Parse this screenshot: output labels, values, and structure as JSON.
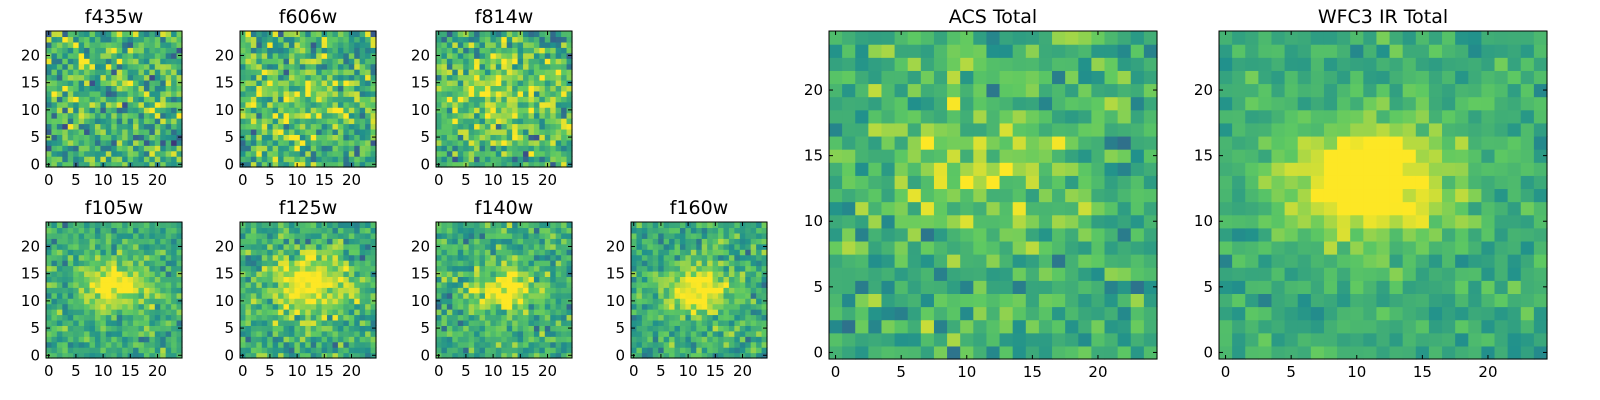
{
  "chart_data": [
    {
      "type": "heatmap",
      "title": "f435w",
      "grid": 25,
      "xlim": [
        0,
        24
      ],
      "ylim": [
        0,
        24
      ],
      "xticks": [
        0,
        5,
        10,
        15,
        20
      ],
      "yticks": [
        0,
        5,
        10,
        15,
        20
      ],
      "signal": {
        "cx": 12,
        "cy": 13,
        "sx": 14,
        "sy": 14,
        "amp": 0.05
      },
      "noise": 0.34,
      "seed": 11
    },
    {
      "type": "heatmap",
      "title": "f606w",
      "grid": 25,
      "xlim": [
        0,
        24
      ],
      "ylim": [
        0,
        24
      ],
      "xticks": [
        0,
        5,
        10,
        15,
        20
      ],
      "yticks": [
        0,
        5,
        10,
        15,
        20
      ],
      "signal": {
        "cx": 11,
        "cy": 13,
        "sx": 9,
        "sy": 7,
        "amp": 0.15
      },
      "noise": 0.34,
      "seed": 23
    },
    {
      "type": "heatmap",
      "title": "f814w",
      "grid": 25,
      "xlim": [
        0,
        24
      ],
      "ylim": [
        0,
        24
      ],
      "xticks": [
        0,
        5,
        10,
        15,
        20
      ],
      "yticks": [
        0,
        5,
        10,
        15,
        20
      ],
      "signal": {
        "cx": 11,
        "cy": 13,
        "sx": 8,
        "sy": 6,
        "amp": 0.22
      },
      "noise": 0.32,
      "seed": 37
    },
    {
      "type": "heatmap",
      "title": "f105w",
      "grid": 25,
      "xlim": [
        0,
        24
      ],
      "ylim": [
        0,
        24
      ],
      "xticks": [
        0,
        5,
        10,
        15,
        20
      ],
      "yticks": [
        0,
        5,
        10,
        15,
        20
      ],
      "signal": {
        "cx": 12,
        "cy": 13,
        "sx": 4,
        "sy": 3,
        "amp": 0.45
      },
      "noise": 0.22,
      "seed": 41
    },
    {
      "type": "heatmap",
      "title": "f125w",
      "grid": 25,
      "xlim": [
        0,
        24
      ],
      "ylim": [
        0,
        24
      ],
      "xticks": [
        0,
        5,
        10,
        15,
        20
      ],
      "yticks": [
        0,
        5,
        10,
        15,
        20
      ],
      "signal": {
        "cx": 12,
        "cy": 13,
        "sx": 5,
        "sy": 4,
        "amp": 0.42
      },
      "noise": 0.24,
      "seed": 53
    },
    {
      "type": "heatmap",
      "title": "f140w",
      "grid": 25,
      "xlim": [
        0,
        24
      ],
      "ylim": [
        0,
        24
      ],
      "xticks": [
        0,
        5,
        10,
        15,
        20
      ],
      "yticks": [
        0,
        5,
        10,
        15,
        20
      ],
      "signal": {
        "cx": 12,
        "cy": 12,
        "sx": 4,
        "sy": 3,
        "amp": 0.42
      },
      "noise": 0.24,
      "seed": 67
    },
    {
      "type": "heatmap",
      "title": "f160w",
      "grid": 25,
      "xlim": [
        0,
        24
      ],
      "ylim": [
        0,
        24
      ],
      "xticks": [
        0,
        5,
        10,
        15,
        20
      ],
      "yticks": [
        0,
        5,
        10,
        15,
        20
      ],
      "signal": {
        "cx": 12,
        "cy": 12,
        "sx": 4,
        "sy": 3,
        "amp": 0.48
      },
      "noise": 0.22,
      "seed": 79
    },
    {
      "type": "heatmap",
      "title": "ACS Total",
      "grid": 25,
      "xlim": [
        0,
        24
      ],
      "ylim": [
        0,
        24
      ],
      "xticks": [
        0,
        5,
        10,
        15,
        20
      ],
      "yticks": [
        0,
        5,
        10,
        15,
        20
      ],
      "signal": {
        "cx": 11,
        "cy": 14,
        "sx": 6,
        "sy": 5,
        "amp": 0.2
      },
      "noise": 0.22,
      "seed": 97
    },
    {
      "type": "heatmap",
      "title": "WFC3 IR Total",
      "grid": 25,
      "xlim": [
        0,
        24
      ],
      "ylim": [
        0,
        24
      ],
      "xticks": [
        0,
        5,
        10,
        15,
        20
      ],
      "yticks": [
        0,
        5,
        10,
        15,
        20
      ],
      "signal": {
        "cx": 11,
        "cy": 13,
        "sx": 4.5,
        "sy": 3,
        "amp": 0.55
      },
      "noise": 0.14,
      "seed": 113
    }
  ],
  "colormap": {
    "name": "viridis",
    "stops": [
      "#440154",
      "#3b528b",
      "#21918c",
      "#5ec962",
      "#fde725"
    ]
  }
}
